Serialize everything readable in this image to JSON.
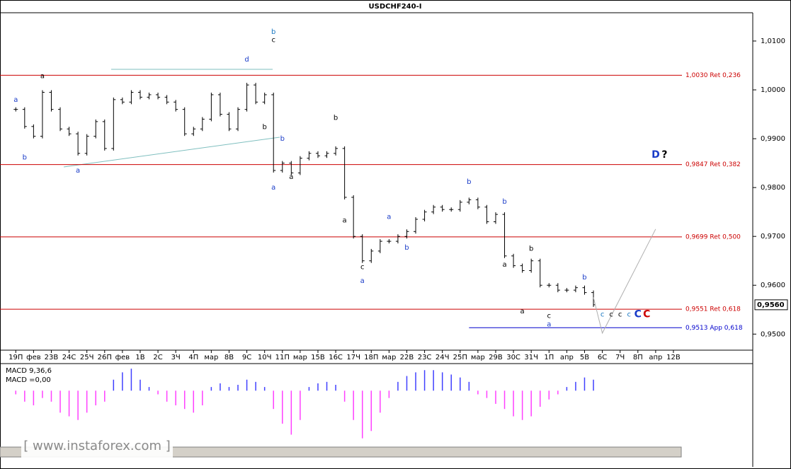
{
  "chart_data": [
    {
      "type": "ohlc",
      "title": "USDCHF240-I",
      "watermark": "[ www.instaforex.com ]",
      "color": "#000000",
      "categories": [
        "19П",
        null,
        "фев",
        null,
        "23В",
        null,
        "24С",
        null,
        "25Ч",
        null,
        "26П",
        null,
        "фев",
        null,
        "1В",
        null,
        "2С",
        null,
        "3Ч",
        null,
        "4П",
        null,
        "мар",
        null,
        "8В",
        null,
        "9С",
        null,
        "10Ч",
        null,
        "11П",
        null,
        "мар",
        null,
        "15В",
        null,
        "16С",
        null,
        "17Ч",
        null,
        "18П",
        null,
        "мар",
        null,
        "22В",
        null,
        "23С",
        null,
        "24Ч",
        null,
        "25П",
        null,
        "мар",
        null,
        "29В",
        null,
        "30С",
        null,
        "31Ч",
        null,
        "1П",
        null,
        "апр",
        null,
        "5В",
        null,
        "6С",
        null,
        "7Ч",
        null,
        "8П",
        null,
        "апр",
        null,
        "12В",
        null
      ],
      "values": [
        0.996,
        0.9925,
        0.9905,
        0.9995,
        0.996,
        0.992,
        0.991,
        0.987,
        0.9905,
        0.9935,
        0.988,
        0.998,
        0.9975,
        0.9995,
        0.9985,
        0.999,
        0.9985,
        0.9975,
        0.996,
        0.991,
        0.992,
        0.994,
        0.999,
        0.995,
        0.992,
        0.996,
        1.001,
        0.9975,
        0.999,
        0.9835,
        0.985,
        0.983,
        0.986,
        0.987,
        0.9865,
        0.987,
        0.988,
        0.978,
        0.97,
        0.965,
        0.967,
        0.969,
        0.969,
        0.97,
        0.971,
        0.9735,
        0.975,
        0.976,
        0.9755,
        0.9755,
        0.977,
        0.9775,
        0.976,
        0.973,
        0.9745,
        0.966,
        0.964,
        0.963,
        0.965,
        0.96,
        0.96,
        0.959,
        0.959,
        0.9595,
        0.9585,
        0.956,
        null,
        null,
        null,
        null,
        null,
        null,
        null,
        null,
        null,
        null
      ],
      "projection": {
        "color": "#b0b0b0",
        "values": [
          null,
          null,
          null,
          null,
          null,
          null,
          null,
          null,
          null,
          null,
          null,
          null,
          null,
          null,
          null,
          null,
          null,
          null,
          null,
          null,
          null,
          null,
          null,
          null,
          null,
          null,
          null,
          null,
          null,
          null,
          null,
          null,
          null,
          null,
          null,
          null,
          null,
          null,
          null,
          null,
          null,
          null,
          null,
          null,
          null,
          null,
          null,
          null,
          null,
          null,
          null,
          null,
          null,
          null,
          null,
          null,
          null,
          null,
          null,
          null,
          null,
          null,
          null,
          null,
          null,
          0.9575,
          0.9502,
          null,
          null,
          null,
          null,
          null,
          0.9715,
          null,
          null,
          null
        ]
      },
      "ylim": [
        0.947,
        1.0155
      ],
      "yticks": [
        {
          "value": 0.95,
          "label": "0,9500"
        },
        {
          "value": 0.96,
          "label": "0,9600"
        },
        {
          "value": 0.97,
          "label": "0,9700"
        },
        {
          "value": 0.98,
          "label": "0,9800"
        },
        {
          "value": 0.99,
          "label": "0,9900"
        },
        {
          "value": 1.0,
          "label": "1,0000"
        },
        {
          "value": 1.01,
          "label": "1,0100"
        }
      ],
      "last_price": {
        "value": 0.956,
        "label": "0,9560"
      },
      "levels": [
        {
          "value": 1.003,
          "label": "1,0030 Ret 0,236",
          "color": "#cc0000"
        },
        {
          "value": 0.9847,
          "label": "0,9847 Ret 0,382",
          "color": "#cc0000"
        },
        {
          "value": 0.9699,
          "label": "0,9699 Ret 0,500",
          "color": "#cc0000"
        },
        {
          "value": 0.9551,
          "label": "0,9551 Ret 0,618",
          "color": "#cc0000"
        },
        {
          "value": 0.9513,
          "label": "0,9513 App 0,618",
          "color": "#0000cc",
          "start": 51
        }
      ],
      "annotations": [
        {
          "text": "b",
          "index": 29,
          "value": 1.0119,
          "color": "#1a78c2"
        },
        {
          "text": "c",
          "index": 29,
          "value": 1.0102,
          "color": "#000000"
        },
        {
          "text": "d",
          "index": 26,
          "value": 1.0062,
          "color": "#1a3cc8"
        },
        {
          "text": "a",
          "index": 3,
          "value": 1.0028,
          "color": "#000000"
        },
        {
          "text": "a",
          "index": 0,
          "value": 0.998,
          "color": "#1a3cc8"
        },
        {
          "text": "b",
          "index": 1,
          "value": 0.9862,
          "color": "#1a3cc8"
        },
        {
          "text": "a",
          "index": 7,
          "value": 0.9835,
          "color": "#1a3cc8"
        },
        {
          "text": "b",
          "index": 28,
          "value": 0.9924,
          "color": "#000000"
        },
        {
          "text": "a",
          "index": 29,
          "value": 0.98,
          "color": "#1a3cc8"
        },
        {
          "text": "b",
          "index": 30,
          "value": 0.99,
          "color": "#1a3cc8"
        },
        {
          "text": "a",
          "index": 31,
          "value": 0.9822,
          "color": "#000000"
        },
        {
          "text": "b",
          "index": 36,
          "value": 0.9943,
          "color": "#000000"
        },
        {
          "text": "a",
          "index": 37,
          "value": 0.9733,
          "color": "#000000"
        },
        {
          "text": "c",
          "index": 39,
          "value": 0.9637,
          "color": "#000000"
        },
        {
          "text": "a",
          "index": 39,
          "value": 0.9609,
          "color": "#1a3cc8"
        },
        {
          "text": "a",
          "index": 42,
          "value": 0.974,
          "color": "#1a3cc8"
        },
        {
          "text": "b",
          "index": 44,
          "value": 0.9677,
          "color": "#1a3cc8"
        },
        {
          "text": "b",
          "index": 51,
          "value": 0.9812,
          "color": "#1a3cc8"
        },
        {
          "text": "b",
          "index": 55,
          "value": 0.9771,
          "color": "#1a3cc8"
        },
        {
          "text": "a",
          "index": 55,
          "value": 0.9642,
          "color": "#000000"
        },
        {
          "text": "b",
          "index": 58,
          "value": 0.9675,
          "color": "#000000"
        },
        {
          "text": "a",
          "index": 57,
          "value": 0.9547,
          "color": "#000000"
        },
        {
          "text": "c",
          "index": 60,
          "value": 0.9537,
          "color": "#000000"
        },
        {
          "text": "a",
          "index": 60,
          "value": 0.952,
          "color": "#1a3cc8"
        },
        {
          "text": "b",
          "index": 64,
          "value": 0.9616,
          "color": "#1a3cc8"
        },
        {
          "text": "c",
          "index": 66,
          "value": 0.954,
          "color": "#1a78c2"
        },
        {
          "text": "c",
          "index": 67,
          "value": 0.954,
          "color": "#000000"
        },
        {
          "text": "c",
          "index": 68,
          "value": 0.954,
          "color": "#000000"
        },
        {
          "text": "c",
          "index": 69,
          "value": 0.954,
          "color": "#1a78c2"
        },
        {
          "text": "C",
          "index": 70,
          "value": 0.954,
          "color": "#1a3cc8"
        },
        {
          "text": "C",
          "index": 71,
          "value": 0.954,
          "color": "#cc0000"
        },
        {
          "text": "D",
          "index": 72,
          "value": 0.9867,
          "color": "#1a3cc8"
        },
        {
          "text": "?",
          "index": 73,
          "value": 0.9867,
          "color": "#000000"
        }
      ]
    },
    {
      "type": "bar",
      "title": "MACD 9,36,6",
      "subtitle": "MACD =0,00",
      "colors": {
        "positive": "#4040ff",
        "negative": "#ff40ff"
      },
      "ylim": [
        -0.0075,
        0.0035
      ],
      "values": [
        -0.0005,
        -0.0015,
        -0.002,
        -0.001,
        -0.0015,
        -0.003,
        -0.0035,
        -0.004,
        -0.003,
        -0.002,
        -0.0015,
        0.0015,
        0.0025,
        0.003,
        0.0015,
        0.0005,
        -0.0005,
        -0.0015,
        -0.002,
        -0.0025,
        -0.003,
        -0.002,
        0.0005,
        0.001,
        0.0005,
        0.0008,
        0.0015,
        0.0012,
        0.0005,
        -0.0025,
        -0.0045,
        -0.006,
        -0.004,
        0.0005,
        0.001,
        0.0012,
        0.0008,
        -0.0015,
        -0.004,
        -0.0065,
        -0.0055,
        -0.003,
        -0.001,
        0.0012,
        0.002,
        0.0025,
        0.0028,
        0.0028,
        0.0025,
        0.0022,
        0.0018,
        0.0012,
        -0.0005,
        -0.001,
        -0.0018,
        -0.0025,
        -0.0035,
        -0.004,
        -0.0035,
        -0.0022,
        -0.0012,
        -0.0005,
        0.0005,
        0.0012,
        0.0018,
        0.0015,
        null,
        null,
        null,
        null,
        null,
        null,
        null,
        null,
        null,
        null
      ]
    }
  ]
}
